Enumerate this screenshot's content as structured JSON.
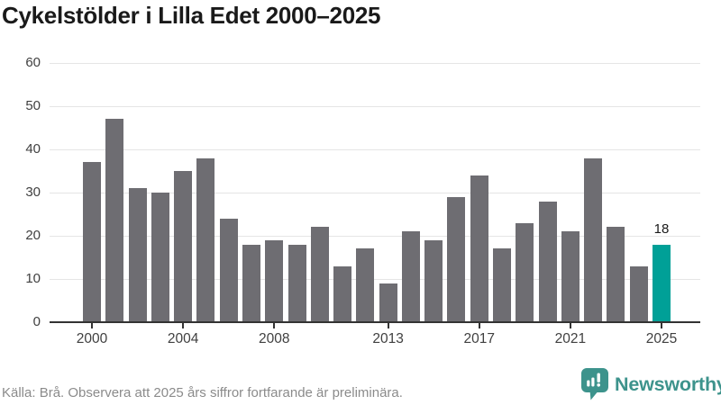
{
  "chart": {
    "title": "Cykelstölder i Lilla Edet 2000–2025"
  },
  "chart_data": {
    "type": "bar",
    "title": "Cykelstölder i Lilla Edet 2000–2025",
    "categories": [
      2000,
      2001,
      2002,
      2003,
      2004,
      2005,
      2006,
      2007,
      2008,
      2009,
      2010,
      2011,
      2012,
      2013,
      2014,
      2015,
      2016,
      2017,
      2018,
      2019,
      2020,
      2021,
      2022,
      2023,
      2024,
      2025
    ],
    "values": [
      37,
      47,
      31,
      30,
      35,
      38,
      24,
      18,
      19,
      18,
      22,
      13,
      17,
      9,
      21,
      19,
      29,
      34,
      17,
      23,
      28,
      21,
      38,
      22,
      13,
      18
    ],
    "xlabel": "",
    "ylabel": "",
    "ylim": [
      0,
      60
    ],
    "yticks": [
      0,
      10,
      20,
      30,
      40,
      50,
      60
    ],
    "xticks": [
      2000,
      2004,
      2008,
      2013,
      2017,
      2021,
      2025
    ],
    "grid": true,
    "legend": "none",
    "bar_color": "#6e6d72",
    "highlight": {
      "year": 2025,
      "value": 18,
      "label": "18",
      "color": "#00a097"
    }
  },
  "footer": {
    "source": "Källa: Brå. Observera att 2025 års siffror fortfarande är preliminära.",
    "brand": "Newsworthy",
    "brand_color": "#3d938c"
  }
}
